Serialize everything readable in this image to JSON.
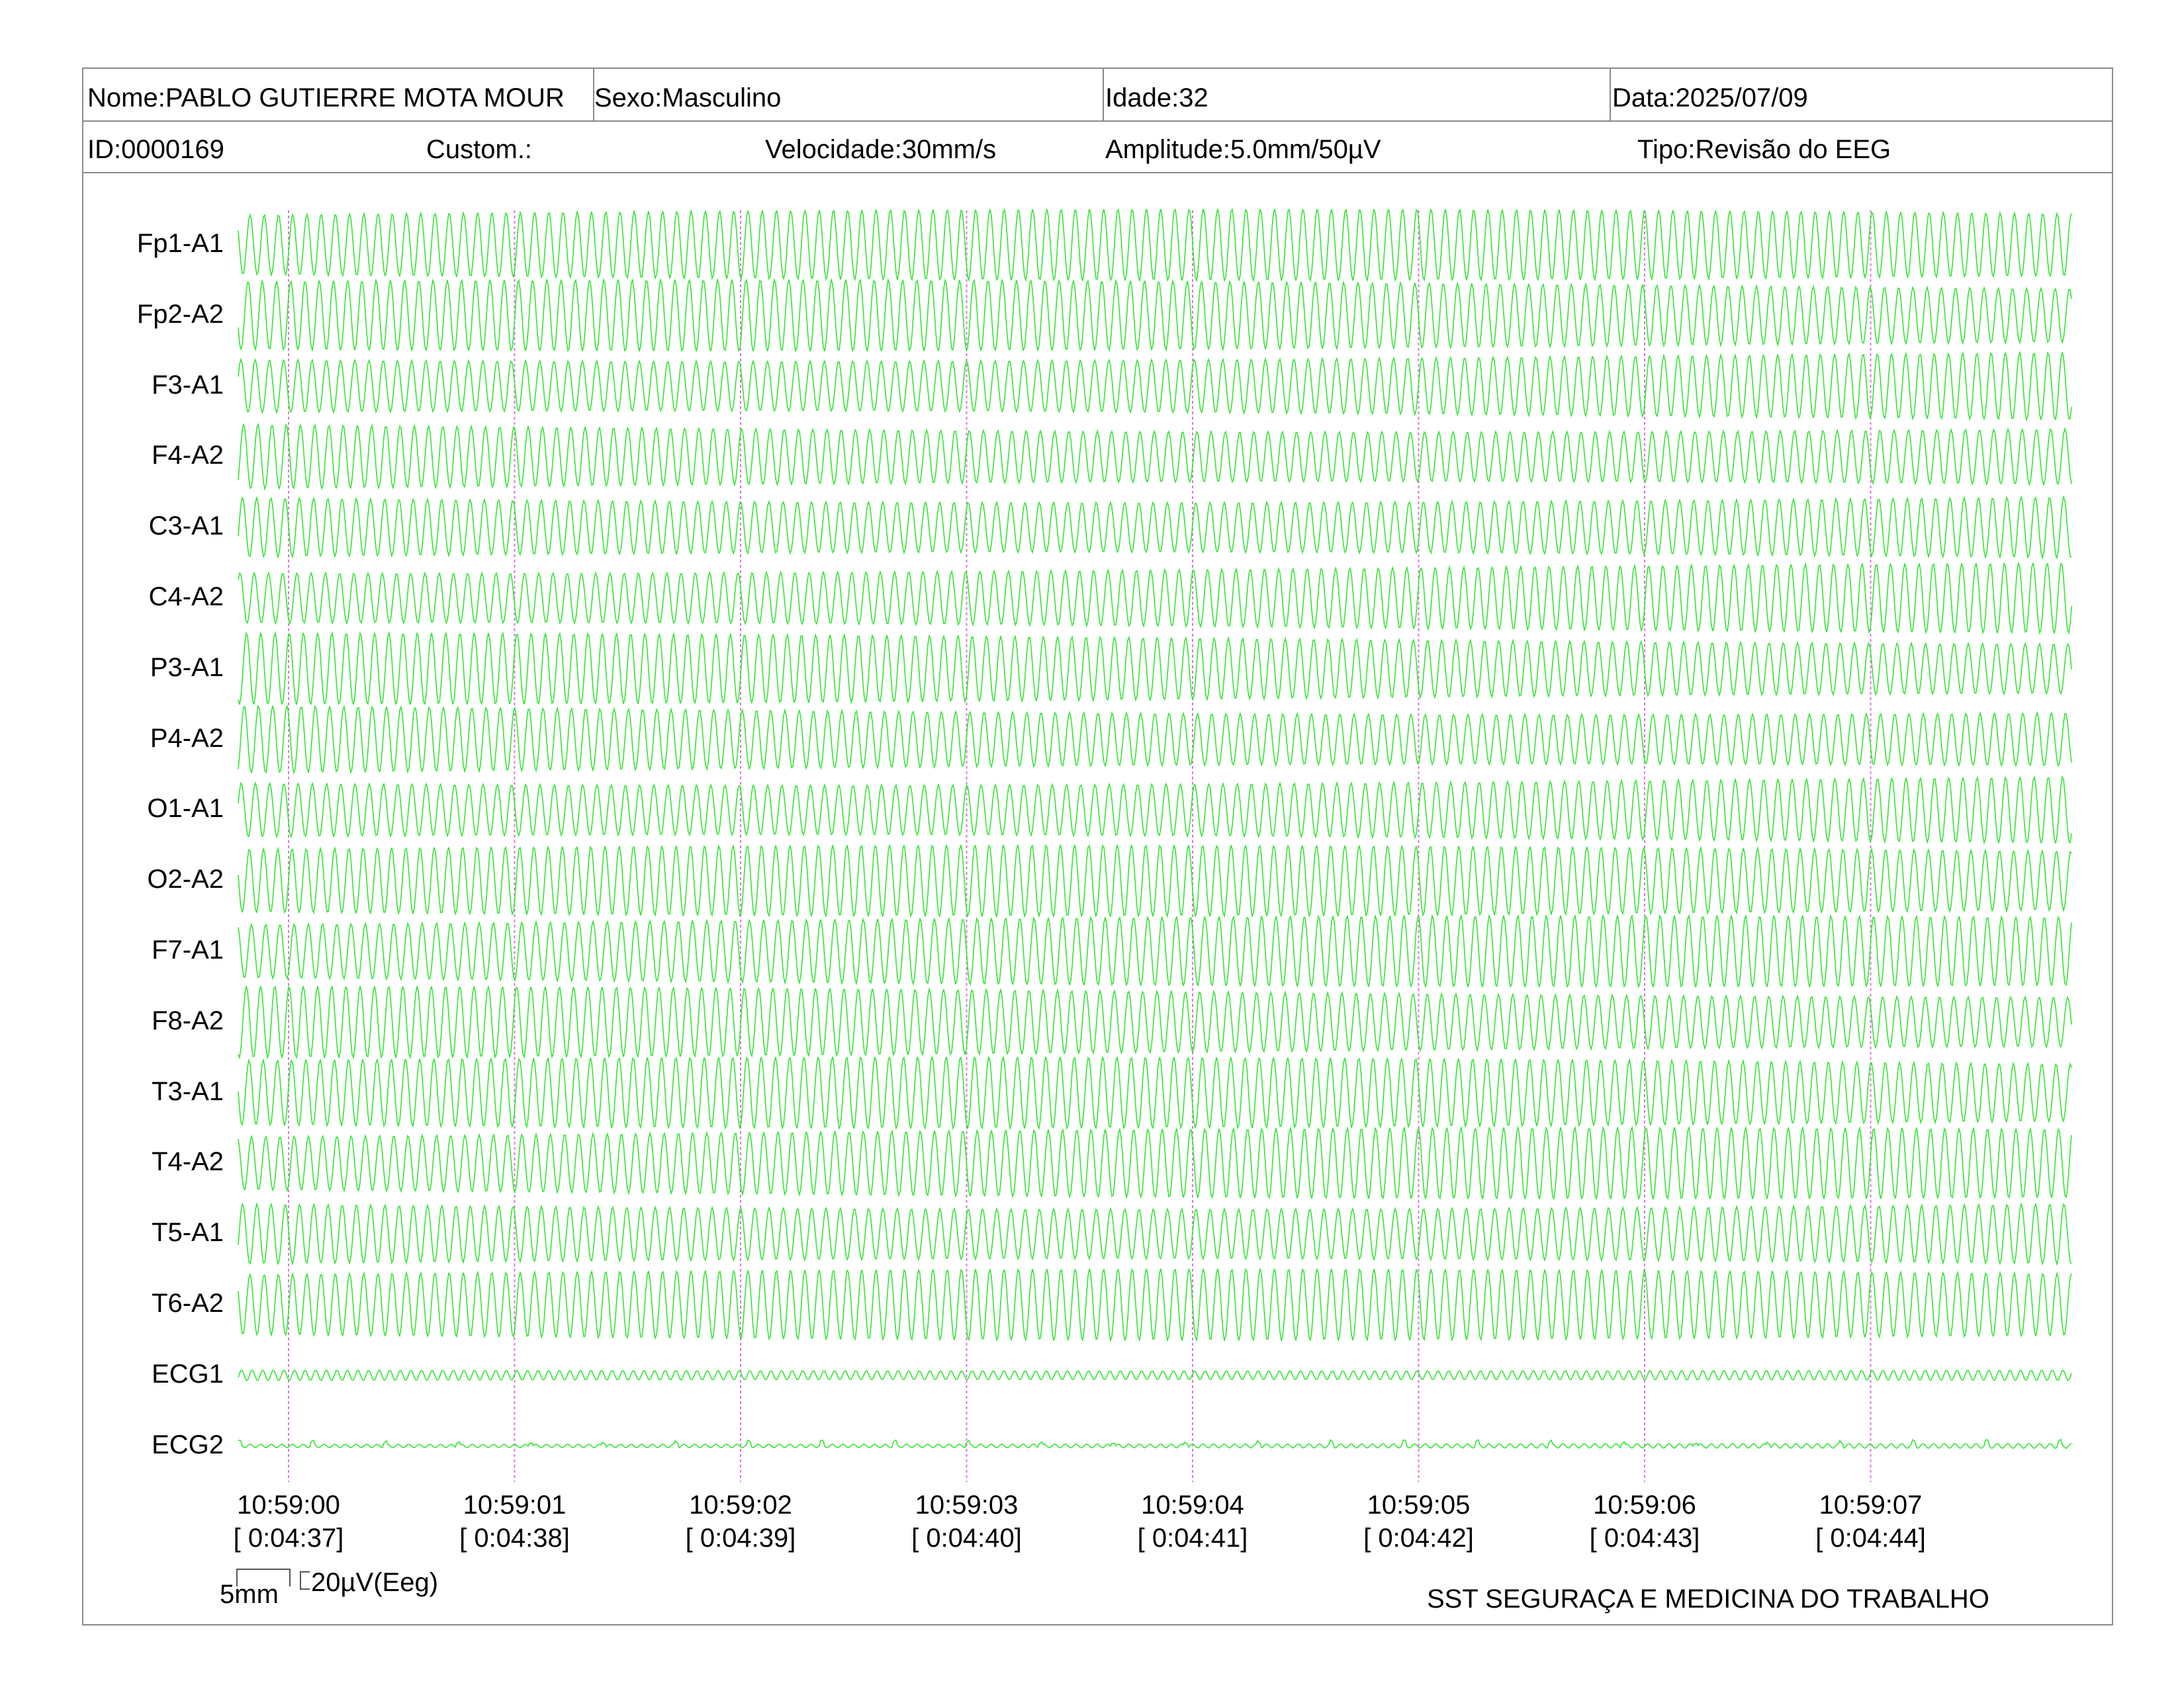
{
  "header": {
    "name": "Nome:PABLO GUTIERRE MOTA MOUR",
    "sex": "Sexo:Masculino",
    "age": "Idade:32",
    "date": "Data:2025/07/09",
    "id": "ID:0000169",
    "custom": "Custom.:",
    "speed": "Velocidade:30mm/s",
    "amplitude": "Amplitude:5.0mm/50µV",
    "type": "Tipo:Revisão do EEG"
  },
  "channels": [
    "Fp1-A1",
    "Fp2-A2",
    "F3-A1",
    "F4-A2",
    "C3-A1",
    "C4-A2",
    "P3-A1",
    "P4-A2",
    "O1-A1",
    "O2-A2",
    "F7-A1",
    "F8-A2",
    "T3-A1",
    "T4-A2",
    "T5-A1",
    "T6-A2",
    "ECG1",
    "ECG2"
  ],
  "time_marks": [
    {
      "clock": "10:59:00",
      "elapsed": "[ 0:04:37]"
    },
    {
      "clock": "10:59:01",
      "elapsed": "[ 0:04:38]"
    },
    {
      "clock": "10:59:02",
      "elapsed": "[ 0:04:39]"
    },
    {
      "clock": "10:59:03",
      "elapsed": "[ 0:04:40]"
    },
    {
      "clock": "10:59:04",
      "elapsed": "[ 0:04:41]"
    },
    {
      "clock": "10:59:05",
      "elapsed": "[ 0:04:42]"
    },
    {
      "clock": "10:59:06",
      "elapsed": "[ 0:04:43]"
    },
    {
      "clock": "10:59:07",
      "elapsed": "[ 0:04:44]"
    }
  ],
  "calibration": {
    "time_scale": "5mm",
    "amp_scale": "20µV(Eeg)"
  },
  "footer": {
    "brand": "SST SEGURAÇA E MEDICINA DO TRABALHO"
  },
  "colors": {
    "trace": "#33e633",
    "marker": "#e070e0",
    "border": "#8a8a8a"
  }
}
